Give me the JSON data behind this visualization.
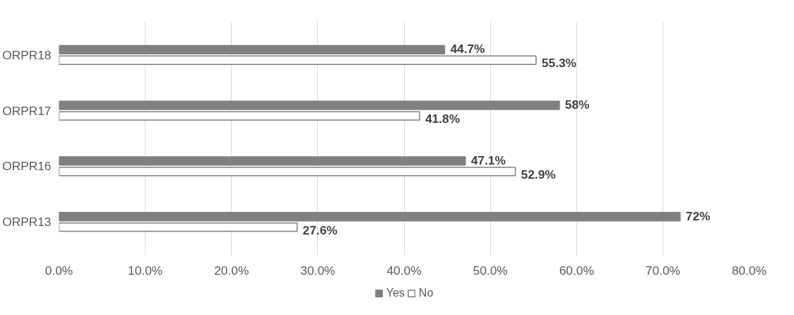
{
  "chart_data": {
    "type": "bar",
    "orientation": "horizontal",
    "categories": [
      "ORPR18",
      "ORPR17",
      "ORPR16",
      "ORPR13"
    ],
    "series": [
      {
        "name": "Yes",
        "color": "#808080",
        "values": [
          44.7,
          58,
          47.1,
          72
        ],
        "value_labels": [
          "44.7%",
          "58%",
          "47.1%",
          "72%"
        ]
      },
      {
        "name": "No",
        "color": "#ffffff",
        "values": [
          55.3,
          41.8,
          52.9,
          27.6
        ],
        "value_labels": [
          "55.3%",
          "41.8%",
          "52.9%",
          "27.6%"
        ]
      }
    ],
    "xlim": [
      0,
      80
    ],
    "xticks": [
      {
        "value": 0,
        "label": "0.0%"
      },
      {
        "value": 10,
        "label": "10.0%"
      },
      {
        "value": 20,
        "label": "20.0%"
      },
      {
        "value": 30,
        "label": "30.0%"
      },
      {
        "value": 40,
        "label": "40.0%"
      },
      {
        "value": 50,
        "label": "50.0%"
      },
      {
        "value": 60,
        "label": "60.0%"
      },
      {
        "value": 70,
        "label": "70.0%"
      },
      {
        "value": 80,
        "label": "80.0%"
      }
    ],
    "grid": "x",
    "legend": "bottom"
  }
}
